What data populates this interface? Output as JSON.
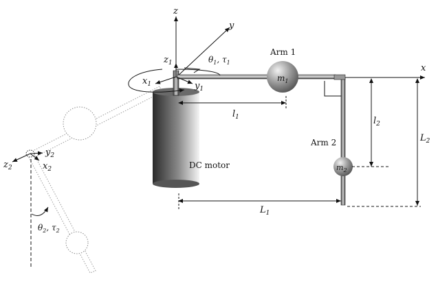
{
  "diagram": {
    "axes": {
      "z": "z",
      "y": "y",
      "x": "x",
      "z1": "z",
      "z1_sub": "1",
      "x1": "x",
      "x1_sub": "1",
      "y1": "y",
      "y1_sub": "1",
      "z2": "z",
      "z2_sub": "2",
      "y2": "y",
      "y2_sub": "2",
      "x2": "x",
      "x2_sub": "2"
    },
    "angles": {
      "theta1_a": "θ",
      "theta1_a_sub": "1",
      "theta1_sep": ", ",
      "theta1_b": "τ",
      "theta1_b_sub": "1",
      "theta2_a": "θ",
      "theta2_a_sub": "2",
      "theta2_sep": ", ",
      "theta2_b": "τ",
      "theta2_b_sub": "2"
    },
    "labels": {
      "arm1": "Arm 1",
      "arm2": "Arm 2",
      "motor": "DC motor",
      "m1": "m",
      "m1_sub": "1",
      "m2": "m",
      "m2_sub": "2"
    },
    "dimensions": {
      "l1": "l",
      "l1_sub": "1",
      "l2": "l",
      "l2_sub": "2",
      "L1": "L",
      "L1_sub": "1",
      "L2": "L",
      "L2_sub": "2"
    }
  }
}
